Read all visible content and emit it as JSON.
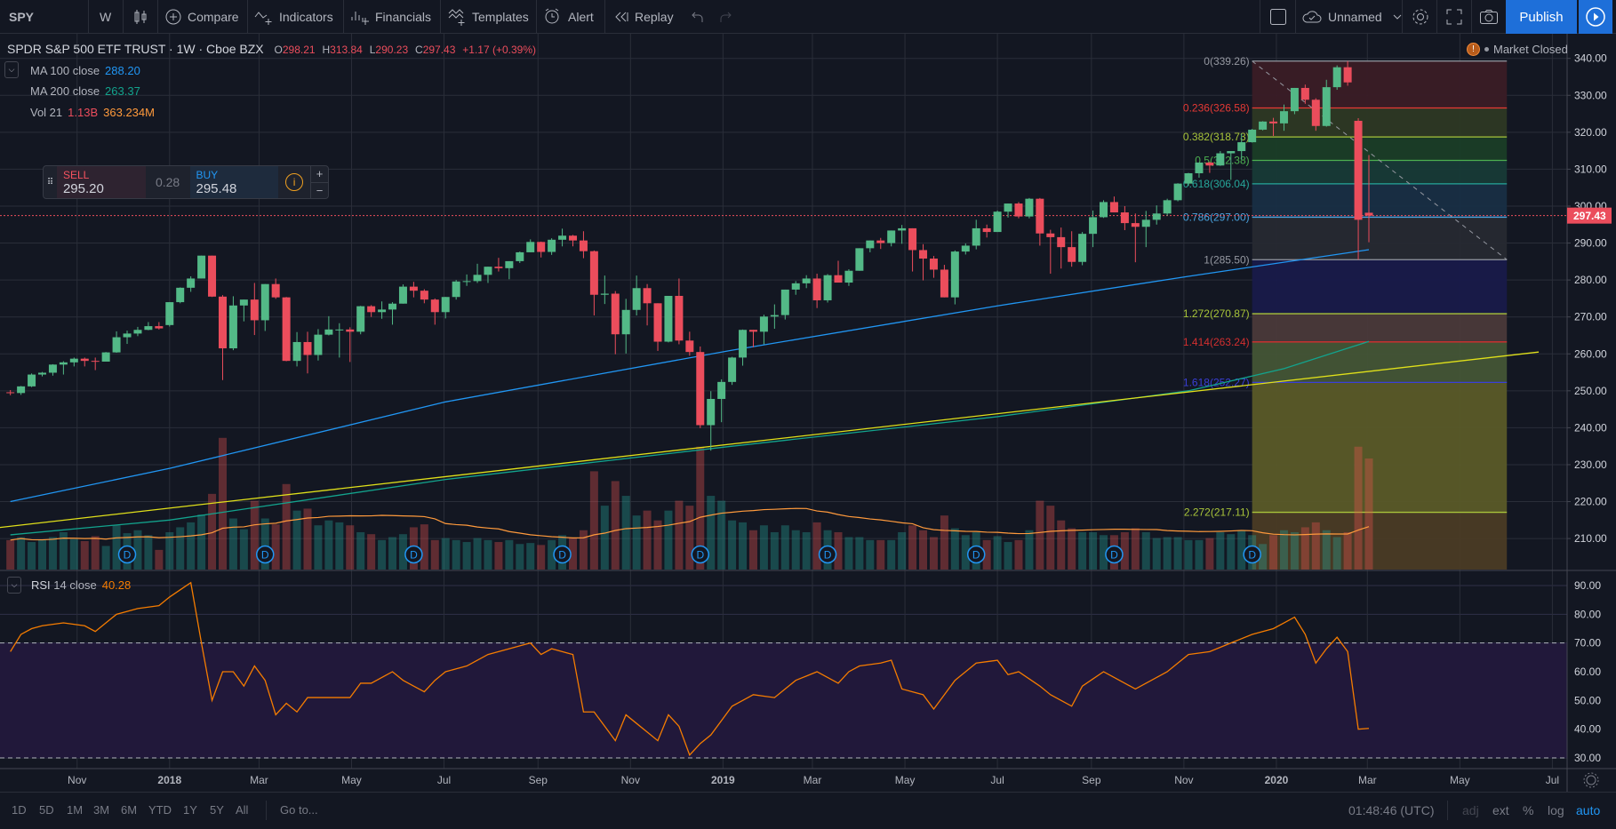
{
  "toolbar": {
    "symbol": "SPY",
    "interval": "W",
    "compare": "Compare",
    "indicators": "Indicators",
    "financials": "Financials",
    "templates": "Templates",
    "alert": "Alert",
    "replay": "Replay",
    "layout_name": "Unnamed",
    "publish": "Publish"
  },
  "legend": {
    "title": "SPDR S&P 500 ETF TRUST · 1W · Cboe BZX",
    "o_label": "O",
    "o": "298.21",
    "h_label": "H",
    "h": "313.84",
    "l_label": "L",
    "l": "290.23",
    "c_label": "C",
    "c": "297.43",
    "change": "+1.17 (+0.39%)",
    "ma100_label": "MA 100 close",
    "ma100_value": "288.20",
    "ma200_label": "MA 200 close",
    "ma200_value": "263.37",
    "vol_label": "Vol 21",
    "vol_value": "1.13B",
    "vol_ma_value": "363.234M",
    "rsi_label": "RSI",
    "rsi_params": "14 close",
    "rsi_value": "40.28"
  },
  "market_status": "Market Closed",
  "trade_widget": {
    "sell_label": "SELL",
    "sell_price": "295.20",
    "spread": "0.28",
    "buy_label": "BUY",
    "buy_price": "295.48",
    "plus": "+",
    "minus": "−"
  },
  "bottom_bar": {
    "ranges": [
      "1D",
      "5D",
      "1M",
      "3M",
      "6M",
      "YTD",
      "1Y",
      "5Y",
      "All"
    ],
    "goto": "Go to...",
    "clock": "01:48:46 (UTC)",
    "options": [
      "adj",
      "ext",
      "%",
      "log",
      "auto"
    ]
  },
  "colors": {
    "background": "#131722",
    "grid": "#2a2e39",
    "up": "#53b987",
    "down": "#eb4d5c",
    "ma100": "#2196f3",
    "ma200": "#13a38d",
    "trendline": "#e0e01a",
    "vol_ma": "#ff9a3c",
    "rsi": "#f57c00",
    "rsi_band": "#21183a",
    "publish": "#1e6fd9"
  },
  "chart_data": {
    "type": "candlestick",
    "symbol": "SPY",
    "interval": "1W",
    "y_axis": {
      "range": [
        203,
        343
      ],
      "ticks": [
        "340.00",
        "330.00",
        "320.00",
        "310.00",
        "300.00",
        "290.00",
        "280.00",
        "270.00",
        "260.00",
        "250.00",
        "240.00",
        "230.00",
        "220.00",
        "210.00"
      ]
    },
    "last_price": "297.43",
    "x_axis": {
      "ticks": [
        {
          "label": "Nov",
          "date": "2017-11-01"
        },
        {
          "label": "2018",
          "date": "2018-01-01"
        },
        {
          "label": "Mar",
          "date": "2018-03-01"
        },
        {
          "label": "May",
          "date": "2018-05-01"
        },
        {
          "label": "Jul",
          "date": "2018-07-01"
        },
        {
          "label": "Sep",
          "date": "2018-09-01"
        },
        {
          "label": "Nov",
          "date": "2018-11-01"
        },
        {
          "label": "2019",
          "date": "2019-01-01"
        },
        {
          "label": "Mar",
          "date": "2019-03-01"
        },
        {
          "label": "May",
          "date": "2019-05-01"
        },
        {
          "label": "Jul",
          "date": "2019-07-01"
        },
        {
          "label": "Sep",
          "date": "2019-09-01"
        },
        {
          "label": "Nov",
          "date": "2019-11-01"
        },
        {
          "label": "2020",
          "date": "2020-01-01"
        },
        {
          "label": "Mar",
          "date": "2020-03-01"
        },
        {
          "label": "May",
          "date": "2020-05-01"
        },
        {
          "label": "Jul",
          "date": "2020-07-01"
        }
      ]
    },
    "first_week": "2017-09-18",
    "ohlc": [
      [
        249.6,
        250.2,
        248.8,
        249.4
      ],
      [
        249.4,
        251.3,
        248.9,
        251.2
      ],
      [
        251.2,
        254.7,
        251.0,
        254.4
      ],
      [
        254.4,
        255.1,
        253.9,
        254.9
      ],
      [
        254.9,
        257.2,
        254.1,
        257.1
      ],
      [
        257.1,
        258.0,
        254.4,
        257.7
      ],
      [
        257.7,
        259.0,
        256.6,
        258.7
      ],
      [
        258.7,
        259.0,
        256.6,
        258.1
      ],
      [
        258.1,
        259.0,
        255.6,
        257.9
      ],
      [
        257.9,
        260.5,
        257.9,
        260.4
      ],
      [
        260.4,
        266.1,
        260.3,
        264.5
      ],
      [
        264.5,
        266.3,
        262.7,
        265.5
      ],
      [
        265.5,
        267.3,
        264.8,
        266.5
      ],
      [
        266.5,
        268.6,
        266.4,
        267.5
      ],
      [
        267.5,
        268.6,
        266.6,
        266.9
      ],
      [
        267.8,
        274.0,
        267.4,
        274.0
      ],
      [
        274.0,
        278.0,
        273.7,
        277.9
      ],
      [
        277.9,
        281.0,
        276.8,
        280.4
      ],
      [
        280.4,
        286.6,
        280.4,
        286.6
      ],
      [
        286.6,
        286.6,
        275.4,
        275.5
      ],
      [
        275.5,
        275.9,
        252.9,
        261.5
      ],
      [
        261.5,
        275.6,
        261.0,
        273.1
      ],
      [
        273.1,
        274.7,
        268.8,
        274.7
      ],
      [
        274.7,
        279.2,
        265.1,
        269.1
      ],
      [
        269.1,
        278.9,
        266.2,
        278.9
      ],
      [
        278.9,
        280.4,
        274.9,
        275.3
      ],
      [
        275.3,
        275.4,
        258.0,
        258.1
      ],
      [
        258.1,
        265.9,
        256.6,
        263.2
      ],
      [
        263.2,
        266.0,
        254.7,
        259.7
      ],
      [
        259.7,
        266.7,
        258.2,
        265.2
      ],
      [
        265.2,
        270.2,
        265.0,
        266.6
      ],
      [
        266.6,
        268.3,
        259.0,
        266.6
      ],
      [
        266.6,
        267.2,
        257.8,
        266.0
      ],
      [
        266.0,
        273.0,
        265.3,
        272.9
      ],
      [
        272.9,
        273.2,
        270.0,
        271.3
      ],
      [
        271.3,
        274.2,
        269.5,
        272.0
      ],
      [
        272.0,
        274.0,
        267.9,
        273.6
      ],
      [
        273.6,
        278.8,
        273.6,
        278.2
      ],
      [
        278.2,
        279.5,
        275.3,
        277.1
      ],
      [
        277.1,
        277.5,
        273.7,
        274.7
      ],
      [
        274.7,
        275.0,
        267.9,
        271.3
      ],
      [
        271.3,
        275.4,
        269.6,
        275.4
      ],
      [
        275.4,
        280.0,
        274.7,
        279.6
      ],
      [
        279.6,
        281.5,
        278.4,
        279.7
      ],
      [
        279.7,
        284.4,
        279.2,
        281.4
      ],
      [
        281.4,
        283.6,
        279.2,
        283.6
      ],
      [
        283.6,
        286.0,
        282.3,
        283.2
      ],
      [
        283.2,
        285.1,
        280.2,
        285.1
      ],
      [
        285.1,
        287.7,
        284.6,
        287.5
      ],
      [
        287.5,
        291.0,
        287.5,
        290.3
      ],
      [
        290.3,
        290.4,
        286.1,
        287.6
      ],
      [
        287.6,
        291.3,
        286.8,
        290.9
      ],
      [
        290.9,
        293.9,
        289.1,
        292.0
      ],
      [
        292.0,
        292.2,
        289.1,
        290.7
      ],
      [
        290.7,
        293.2,
        285.9,
        287.8
      ],
      [
        287.8,
        288.0,
        270.4,
        276.0
      ],
      [
        276.0,
        281.2,
        273.5,
        276.3
      ],
      [
        276.3,
        277.0,
        259.9,
        265.3
      ],
      [
        265.3,
        274.9,
        260.1,
        271.9
      ],
      [
        271.9,
        281.2,
        270.4,
        277.8
      ],
      [
        277.8,
        278.9,
        267.7,
        273.7
      ],
      [
        273.7,
        273.7,
        260.8,
        263.3
      ],
      [
        263.3,
        275.7,
        263.1,
        275.7
      ],
      [
        275.7,
        280.4,
        262.6,
        263.6
      ],
      [
        263.6,
        266.0,
        259.5,
        260.5
      ],
      [
        260.5,
        262.0,
        239.9,
        240.7
      ],
      [
        240.7,
        249.9,
        233.8,
        247.8
      ],
      [
        247.8,
        253.1,
        241.5,
        252.4
      ],
      [
        252.4,
        259.2,
        251.6,
        259.0
      ],
      [
        259.0,
        266.6,
        256.8,
        266.5
      ],
      [
        266.5,
        266.5,
        261.8,
        266.0
      ],
      [
        266.0,
        270.6,
        262.6,
        270.1
      ],
      [
        270.1,
        273.4,
        266.8,
        270.5
      ],
      [
        270.5,
        277.4,
        269.3,
        277.4
      ],
      [
        277.4,
        279.7,
        276.0,
        279.1
      ],
      [
        279.1,
        281.3,
        277.8,
        280.4
      ],
      [
        280.4,
        281.7,
        272.4,
        274.5
      ],
      [
        274.5,
        281.6,
        273.9,
        281.3
      ],
      [
        281.3,
        285.2,
        279.3,
        279.3
      ],
      [
        279.3,
        282.9,
        278.4,
        282.5
      ],
      [
        282.5,
        288.6,
        282.5,
        288.6
      ],
      [
        288.6,
        290.7,
        287.5,
        290.7
      ],
      [
        290.7,
        291.4,
        288.4,
        290.0
      ],
      [
        290.0,
        293.4,
        289.1,
        293.4
      ],
      [
        293.4,
        294.9,
        289.8,
        294.0
      ],
      [
        294.0,
        294.0,
        282.3,
        288.1
      ],
      [
        288.1,
        289.7,
        279.9,
        285.8
      ],
      [
        285.8,
        286.5,
        280.6,
        282.8
      ],
      [
        282.8,
        284.1,
        275.3,
        275.3
      ],
      [
        275.3,
        288.0,
        273.4,
        287.7
      ],
      [
        287.7,
        289.9,
        286.9,
        289.3
      ],
      [
        289.3,
        296.3,
        288.3,
        294.0
      ],
      [
        294.0,
        295.0,
        291.5,
        293.0
      ],
      [
        293.0,
        298.8,
        293.0,
        298.5
      ],
      [
        298.5,
        300.7,
        296.9,
        300.7
      ],
      [
        300.7,
        301.1,
        296.7,
        297.2
      ],
      [
        297.2,
        302.2,
        296.7,
        302.0
      ],
      [
        302.0,
        302.2,
        289.3,
        292.6
      ],
      [
        292.6,
        293.6,
        281.7,
        291.6
      ],
      [
        291.6,
        294.2,
        283.1,
        288.9
      ],
      [
        288.9,
        293.2,
        283.6,
        284.9
      ],
      [
        284.9,
        293.0,
        284.0,
        292.5
      ],
      [
        292.5,
        298.8,
        288.9,
        297.0
      ],
      [
        297.0,
        301.6,
        296.8,
        301.1
      ],
      [
        301.1,
        302.6,
        298.3,
        298.3
      ],
      [
        298.3,
        300.0,
        293.5,
        295.4
      ],
      [
        295.4,
        298.0,
        284.8,
        294.4
      ],
      [
        294.4,
        298.7,
        288.9,
        296.3
      ],
      [
        296.3,
        300.2,
        295.0,
        298.0
      ],
      [
        298.0,
        302.0,
        297.4,
        301.6
      ],
      [
        301.6,
        306.2,
        301.3,
        306.1
      ],
      [
        306.1,
        309.0,
        305.5,
        308.9
      ],
      [
        308.9,
        311.8,
        307.7,
        311.8
      ],
      [
        311.8,
        312.0,
        309.0,
        311.0
      ],
      [
        311.0,
        314.9,
        310.9,
        314.3
      ],
      [
        314.3,
        314.9,
        307.1,
        314.9
      ],
      [
        314.9,
        319.6,
        312.6,
        317.3
      ],
      [
        317.3,
        320.9,
        317.2,
        320.7
      ],
      [
        320.7,
        323.0,
        320.5,
        322.9
      ],
      [
        322.9,
        323.9,
        319.0,
        322.4
      ],
      [
        322.4,
        327.5,
        320.4,
        325.7
      ],
      [
        325.7,
        332.0,
        324.9,
        332.0
      ],
      [
        332.0,
        332.9,
        327.7,
        328.8
      ],
      [
        328.8,
        329.2,
        320.4,
        321.7
      ],
      [
        321.7,
        334.2,
        321.5,
        332.2
      ],
      [
        332.2,
        338.1,
        331.5,
        337.6
      ],
      [
        337.6,
        339.26,
        332.6,
        333.5
      ],
      [
        323.1,
        323.8,
        285.5,
        296.3
      ],
      [
        298.21,
        313.84,
        290.23,
        297.43
      ]
    ],
    "volume_millions": [
      300,
      330,
      280,
      300,
      330,
      380,
      310,
      290,
      340,
      240,
      450,
      370,
      400,
      350,
      200,
      380,
      430,
      480,
      560,
      770,
      1340,
      520,
      410,
      700,
      520,
      460,
      870,
      600,
      620,
      450,
      500,
      480,
      450,
      380,
      360,
      300,
      330,
      360,
      430,
      460,
      300,
      320,
      300,
      280,
      320,
      300,
      280,
      300,
      260,
      270,
      250,
      300,
      350,
      320,
      400,
      1000,
      650,
      900,
      750,
      550,
      600,
      500,
      600,
      700,
      650,
      1250,
      750,
      700,
      500,
      480,
      400,
      450,
      380,
      450,
      400,
      380,
      480,
      400,
      380,
      330,
      330,
      300,
      300,
      300,
      380,
      450,
      400,
      330,
      550,
      420,
      350,
      380,
      300,
      340,
      280,
      300,
      400,
      700,
      650,
      500,
      420,
      380,
      380,
      350,
      350,
      380,
      420,
      380,
      320,
      330,
      330,
      300,
      300,
      320,
      380,
      360,
      400,
      350,
      260,
      350,
      400,
      380,
      430,
      480,
      400,
      330,
      380,
      1250,
      1130
    ],
    "ma100": [
      [
        "2017-09-18",
        220
      ],
      [
        "2018-01-01",
        229
      ],
      [
        "2018-07-02",
        247
      ],
      [
        "2019-01-07",
        261
      ],
      [
        "2019-07-01",
        273
      ],
      [
        "2019-11-04",
        281
      ],
      [
        "2020-03-02",
        288.2
      ]
    ],
    "ma200": [
      [
        "2017-09-18",
        211
      ],
      [
        "2018-01-01",
        215
      ],
      [
        "2018-07-02",
        226
      ],
      [
        "2019-01-07",
        235
      ],
      [
        "2019-07-01",
        243
      ],
      [
        "2019-11-04",
        250
      ],
      [
        "2020-01-06",
        256
      ],
      [
        "2020-03-02",
        263.37
      ]
    ],
    "trendline": [
      [
        "2017-09-11",
        213
      ],
      [
        "2020-06-22",
        260.5
      ]
    ],
    "dividends": {
      "label": "D",
      "dates": [
        "2017-12-04",
        "2018-03-05",
        "2018-06-11",
        "2018-09-17",
        "2018-12-17",
        "2019-03-11",
        "2019-06-17",
        "2019-09-16",
        "2019-12-16"
      ]
    },
    "fib": {
      "start": [
        "2019-12-16",
        339.26
      ],
      "end": [
        "2020-06-01",
        285.5
      ],
      "levels": [
        {
          "label": "0(339.26)",
          "price": 339.26,
          "color": "#9598a1",
          "fill": "#3a1c26"
        },
        {
          "label": "0.236(326.58)",
          "price": 326.58,
          "color": "#e53935",
          "fill": "#2d3824"
        },
        {
          "label": "0.382(318.73)",
          "price": 318.73,
          "color": "#a8c43a",
          "fill": "#1a3d27"
        },
        {
          "label": "0.5(312.38)",
          "price": 312.38,
          "color": "#4caf50",
          "fill": "#173a37"
        },
        {
          "label": "0.618(306.04)",
          "price": 306.04,
          "color": "#26a69a",
          "fill": "#182e44"
        },
        {
          "label": "0.786(297.00)",
          "price": 297.0,
          "color": "#4aa3df",
          "fill": "#262932"
        },
        {
          "label": "1(285.50)",
          "price": 285.5,
          "color": "#9598a1",
          "fill": "#181a4a"
        },
        {
          "label": "1.272(270.87)",
          "price": 270.87,
          "color": "#a8c43a",
          "fill": "#4a393a"
        },
        {
          "label": "1.414(263.24)",
          "price": 263.24,
          "color": "#d32f2f",
          "fill": "#435536"
        },
        {
          "label": "1.618(252.27)",
          "price": 252.27,
          "color": "#3a3fd8",
          "fill": "#5a5a28"
        },
        {
          "label": "2.272(217.11)",
          "price": 217.11,
          "color": "#a8c43a",
          "fill": "#4a3b25"
        }
      ]
    },
    "rsi": {
      "range": [
        26,
        94
      ],
      "ticks": [
        "90.00",
        "80.00",
        "70.00",
        "60.00",
        "50.00",
        "40.00",
        "30.00"
      ],
      "overbought": 70,
      "oversold": 30,
      "values": [
        67,
        73,
        75,
        76,
        76.5,
        77,
        76.5,
        76,
        74,
        77,
        80,
        81,
        82,
        82.5,
        83,
        86,
        88.5,
        91,
        70,
        50,
        60,
        60,
        55,
        62,
        57,
        45,
        49,
        46,
        51,
        51,
        51,
        51,
        51,
        56,
        56,
        58,
        60,
        57,
        55,
        53,
        57,
        60,
        61,
        62,
        64,
        66,
        67,
        68,
        69,
        70,
        66,
        68,
        67,
        66,
        46,
        46,
        41,
        36,
        45,
        42,
        39,
        36,
        45,
        41,
        31,
        35,
        38,
        43,
        48,
        50,
        52,
        51.5,
        51,
        54,
        57,
        58.5,
        60,
        58,
        56,
        60,
        62,
        62.5,
        63,
        64,
        54,
        53,
        52,
        47,
        52,
        57,
        60,
        63,
        63.5,
        64,
        59,
        60,
        57.5,
        55,
        52,
        50,
        48,
        55,
        57.5,
        60,
        58,
        56,
        54,
        56,
        58,
        60,
        63,
        66,
        66.5,
        67,
        68.5,
        70,
        71.5,
        73,
        74,
        75,
        77,
        79,
        73,
        63,
        68,
        72,
        67,
        40,
        40.28
      ]
    }
  }
}
